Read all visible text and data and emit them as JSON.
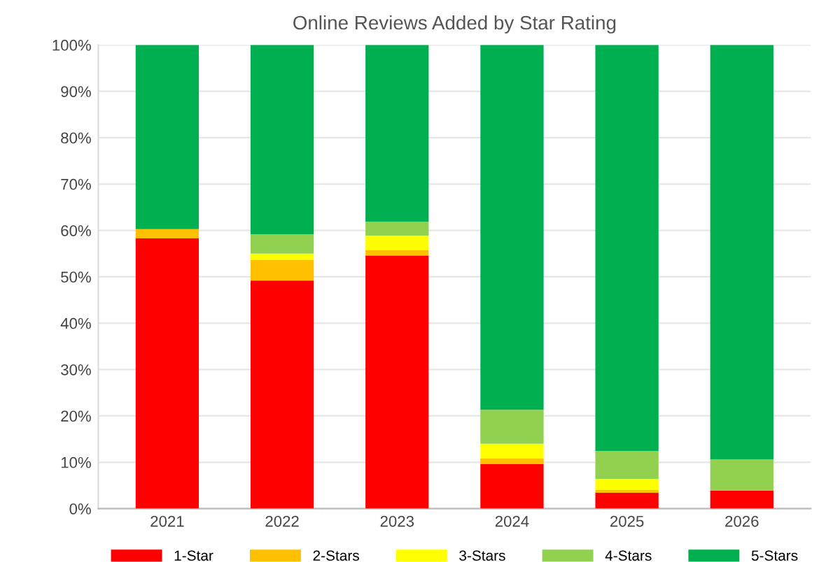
{
  "chart_data": {
    "type": "bar",
    "title": "Online Reviews Added by Star Rating",
    "stacked": true,
    "categories": [
      "2021",
      "2022",
      "2023",
      "2024",
      "2025",
      "2026"
    ],
    "series": [
      {
        "name": "1-Star",
        "color": "#ff0000",
        "values": [
          58.3,
          49.2,
          54.6,
          9.6,
          3.4,
          3.9
        ]
      },
      {
        "name": "2-Stars",
        "color": "#ffc000",
        "values": [
          2,
          4.4,
          1.2,
          1.2,
          0.6,
          0
        ]
      },
      {
        "name": "3-Stars",
        "color": "#ffff00",
        "values": [
          0,
          1.4,
          3.1,
          3.2,
          2.4,
          0
        ]
      },
      {
        "name": "4-Stars",
        "color": "#92d050",
        "values": [
          0,
          4.2,
          3,
          7.3,
          6,
          6.7
        ]
      },
      {
        "name": "5-Stars",
        "color": "#00b050",
        "values": [
          39.7,
          40.8,
          38.1,
          78.7,
          87.6,
          89.4
        ]
      }
    ],
    "ylim": [
      0,
      100
    ],
    "yticks": [
      {
        "value": 0,
        "label": "0%"
      },
      {
        "value": 10,
        "label": "10%"
      },
      {
        "value": 20,
        "label": "20%"
      },
      {
        "value": 30,
        "label": "30%"
      },
      {
        "value": 40,
        "label": "40%"
      },
      {
        "value": 50,
        "label": "50%"
      },
      {
        "value": 60,
        "label": "60%"
      },
      {
        "value": 70,
        "label": "70%"
      },
      {
        "value": 80,
        "label": "80%"
      },
      {
        "value": 90,
        "label": "90%"
      },
      {
        "value": 100,
        "label": "100%"
      }
    ],
    "grid": "y",
    "legend": "bottom"
  }
}
